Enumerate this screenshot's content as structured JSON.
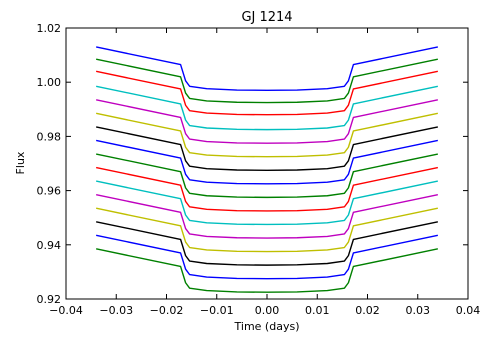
{
  "chart_data": {
    "type": "line",
    "title": "GJ 1214",
    "xlabel": "Time (days)",
    "ylabel": "Flux",
    "xlim": [
      -0.04,
      0.04
    ],
    "ylim": [
      0.92,
      1.02
    ],
    "xticks": [
      -0.04,
      -0.03,
      -0.02,
      -0.01,
      0.0,
      0.01,
      0.02,
      0.03,
      0.04
    ],
    "xtick_labels": [
      "−0.04",
      "−0.03",
      "−0.02",
      "−0.01",
      "0.00",
      "0.01",
      "0.02",
      "0.03",
      "0.04"
    ],
    "yticks": [
      0.92,
      0.94,
      0.96,
      0.98,
      1.0,
      1.02
    ],
    "ytick_labels": [
      "0.92",
      "0.94",
      "0.96",
      "0.98",
      "1.00",
      "1.02"
    ],
    "grid": false,
    "legend": false,
    "x": [
      -0.034,
      -0.0172,
      -0.0162,
      -0.0154,
      -0.012,
      -0.006,
      0.0,
      0.006,
      0.012,
      0.0154,
      0.0162,
      0.0172,
      0.034
    ],
    "series": [
      {
        "color": "#0000ff",
        "values": [
          1.013,
          1.0065,
          1.0005,
          0.9985,
          0.9976,
          0.9971,
          0.997,
          0.9971,
          0.9976,
          0.9985,
          1.0005,
          1.0065,
          1.013
        ]
      },
      {
        "color": "#008000",
        "values": [
          1.0085,
          1.002,
          0.996,
          0.994,
          0.9931,
          0.9926,
          0.9925,
          0.9926,
          0.9931,
          0.994,
          0.996,
          1.002,
          1.0085
        ]
      },
      {
        "color": "#ff0000",
        "values": [
          1.004,
          0.9975,
          0.9915,
          0.9895,
          0.9886,
          0.9881,
          0.988,
          0.9881,
          0.9886,
          0.9895,
          0.9915,
          0.9975,
          1.004
        ]
      },
      {
        "color": "#00bfbf",
        "values": [
          0.9985,
          0.992,
          0.986,
          0.984,
          0.9831,
          0.9826,
          0.9825,
          0.9826,
          0.9831,
          0.984,
          0.986,
          0.992,
          0.9985
        ]
      },
      {
        "color": "#bf00bf",
        "values": [
          0.9935,
          0.987,
          0.981,
          0.979,
          0.9781,
          0.9776,
          0.9775,
          0.9776,
          0.9781,
          0.979,
          0.981,
          0.987,
          0.9935
        ]
      },
      {
        "color": "#bfbf00",
        "values": [
          0.9885,
          0.982,
          0.976,
          0.974,
          0.9731,
          0.9726,
          0.9725,
          0.9726,
          0.9731,
          0.974,
          0.976,
          0.982,
          0.9885
        ]
      },
      {
        "color": "#000000",
        "values": [
          0.9835,
          0.977,
          0.971,
          0.969,
          0.9681,
          0.9676,
          0.9675,
          0.9676,
          0.9681,
          0.969,
          0.971,
          0.977,
          0.9835
        ]
      },
      {
        "color": "#0000ff",
        "values": [
          0.9785,
          0.972,
          0.966,
          0.964,
          0.9631,
          0.9626,
          0.9625,
          0.9626,
          0.9631,
          0.964,
          0.966,
          0.972,
          0.9785
        ]
      },
      {
        "color": "#008000",
        "values": [
          0.9735,
          0.967,
          0.961,
          0.959,
          0.9581,
          0.9576,
          0.9575,
          0.9576,
          0.9581,
          0.959,
          0.961,
          0.967,
          0.9735
        ]
      },
      {
        "color": "#ff0000",
        "values": [
          0.9685,
          0.962,
          0.956,
          0.954,
          0.9531,
          0.9526,
          0.9525,
          0.9526,
          0.9531,
          0.954,
          0.956,
          0.962,
          0.9685
        ]
      },
      {
        "color": "#00bfbf",
        "values": [
          0.9635,
          0.957,
          0.951,
          0.949,
          0.9481,
          0.9476,
          0.9475,
          0.9476,
          0.9481,
          0.949,
          0.951,
          0.957,
          0.9635
        ]
      },
      {
        "color": "#bf00bf",
        "values": [
          0.9585,
          0.952,
          0.946,
          0.944,
          0.9431,
          0.9426,
          0.9425,
          0.9426,
          0.9431,
          0.944,
          0.946,
          0.952,
          0.9585
        ]
      },
      {
        "color": "#bfbf00",
        "values": [
          0.9535,
          0.947,
          0.941,
          0.939,
          0.9381,
          0.9376,
          0.9375,
          0.9376,
          0.9381,
          0.939,
          0.941,
          0.947,
          0.9535
        ]
      },
      {
        "color": "#000000",
        "values": [
          0.9485,
          0.942,
          0.936,
          0.934,
          0.9331,
          0.9326,
          0.9325,
          0.9326,
          0.9331,
          0.934,
          0.936,
          0.942,
          0.9485
        ]
      },
      {
        "color": "#0000ff",
        "values": [
          0.9435,
          0.937,
          0.931,
          0.929,
          0.9281,
          0.9276,
          0.9275,
          0.9276,
          0.9281,
          0.929,
          0.931,
          0.937,
          0.9435
        ]
      },
      {
        "color": "#008000",
        "values": [
          0.9385,
          0.932,
          0.926,
          0.924,
          0.9231,
          0.9226,
          0.9225,
          0.9226,
          0.9231,
          0.924,
          0.926,
          0.932,
          0.9385
        ]
      }
    ]
  }
}
